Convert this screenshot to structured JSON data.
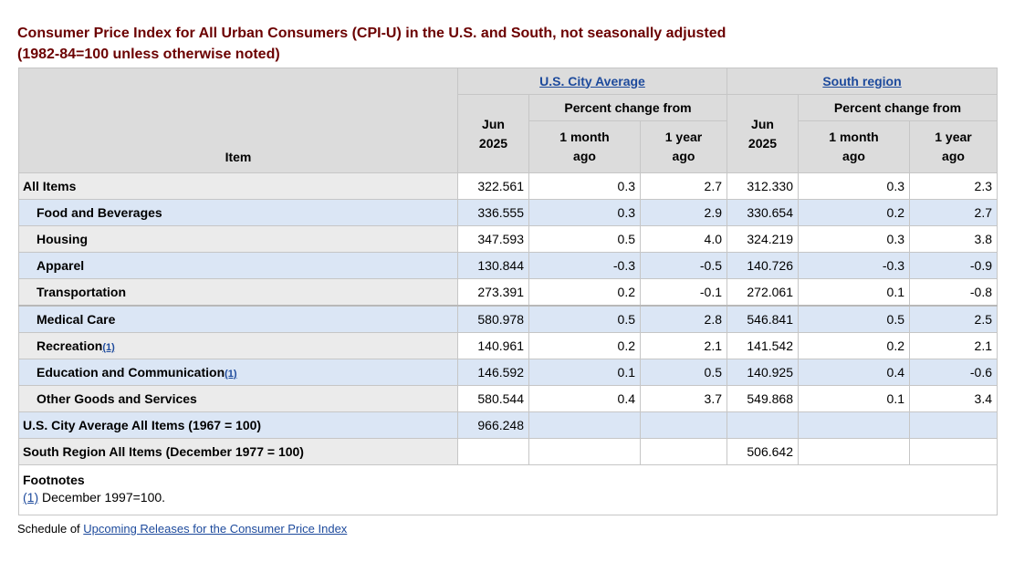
{
  "title_line1": "Consumer Price Index for All Urban Consumers (CPI-U) in the U.S. and South, not seasonally adjusted",
  "title_line2": "(1982-84=100 unless otherwise noted)",
  "header": {
    "item": "Item",
    "group_us": "U.S. City Average",
    "group_south": "South region",
    "pct_change_from": "Percent change from",
    "month_line1": "Jun",
    "month_line2": "2025",
    "one_month_line1": "1 month",
    "one_month_line2": "ago",
    "one_year_line1": "1 year",
    "one_year_line2": "ago"
  },
  "rows": [
    {
      "item": "All Items",
      "us_index": "322.561",
      "us_1m": "0.3",
      "us_1y": "2.7",
      "s_index": "312.330",
      "s_1m": "0.3",
      "s_1y": "2.3"
    },
    {
      "item": "Food and Beverages",
      "us_index": "336.555",
      "us_1m": "0.3",
      "us_1y": "2.9",
      "s_index": "330.654",
      "s_1m": "0.2",
      "s_1y": "2.7"
    },
    {
      "item": "Housing",
      "us_index": "347.593",
      "us_1m": "0.5",
      "us_1y": "4.0",
      "s_index": "324.219",
      "s_1m": "0.3",
      "s_1y": "3.8"
    },
    {
      "item": "Apparel",
      "us_index": "130.844",
      "us_1m": "-0.3",
      "us_1y": "-0.5",
      "s_index": "140.726",
      "s_1m": "-0.3",
      "s_1y": "-0.9"
    },
    {
      "item": "Transportation",
      "us_index": "273.391",
      "us_1m": "0.2",
      "us_1y": "-0.1",
      "s_index": "272.061",
      "s_1m": "0.1",
      "s_1y": "-0.8"
    },
    {
      "item": "Medical Care",
      "us_index": "580.978",
      "us_1m": "0.5",
      "us_1y": "2.8",
      "s_index": "546.841",
      "s_1m": "0.5",
      "s_1y": "2.5"
    },
    {
      "item": "Recreation",
      "footnote": "(1)",
      "us_index": "140.961",
      "us_1m": "0.2",
      "us_1y": "2.1",
      "s_index": "141.542",
      "s_1m": "0.2",
      "s_1y": "2.1"
    },
    {
      "item": "Education and Communication",
      "footnote": "(1)",
      "us_index": "146.592",
      "us_1m": "0.1",
      "us_1y": "0.5",
      "s_index": "140.925",
      "s_1m": "0.4",
      "s_1y": "-0.6"
    },
    {
      "item": "Other Goods and Services",
      "us_index": "580.544",
      "us_1m": "0.4",
      "us_1y": "3.7",
      "s_index": "549.868",
      "s_1m": "0.1",
      "s_1y": "3.4"
    },
    {
      "item": "U.S. City Average All Items (1967 = 100)",
      "us_index": "966.248"
    },
    {
      "item": "South Region All Items (December 1977 = 100)",
      "s_index": "506.642"
    }
  ],
  "footnotes": {
    "title": "Footnotes",
    "ref": "(1)",
    "text": " December 1997=100."
  },
  "schedule": {
    "prefix": "Schedule of ",
    "link": "Upcoming Releases for the Consumer Price Index"
  }
}
